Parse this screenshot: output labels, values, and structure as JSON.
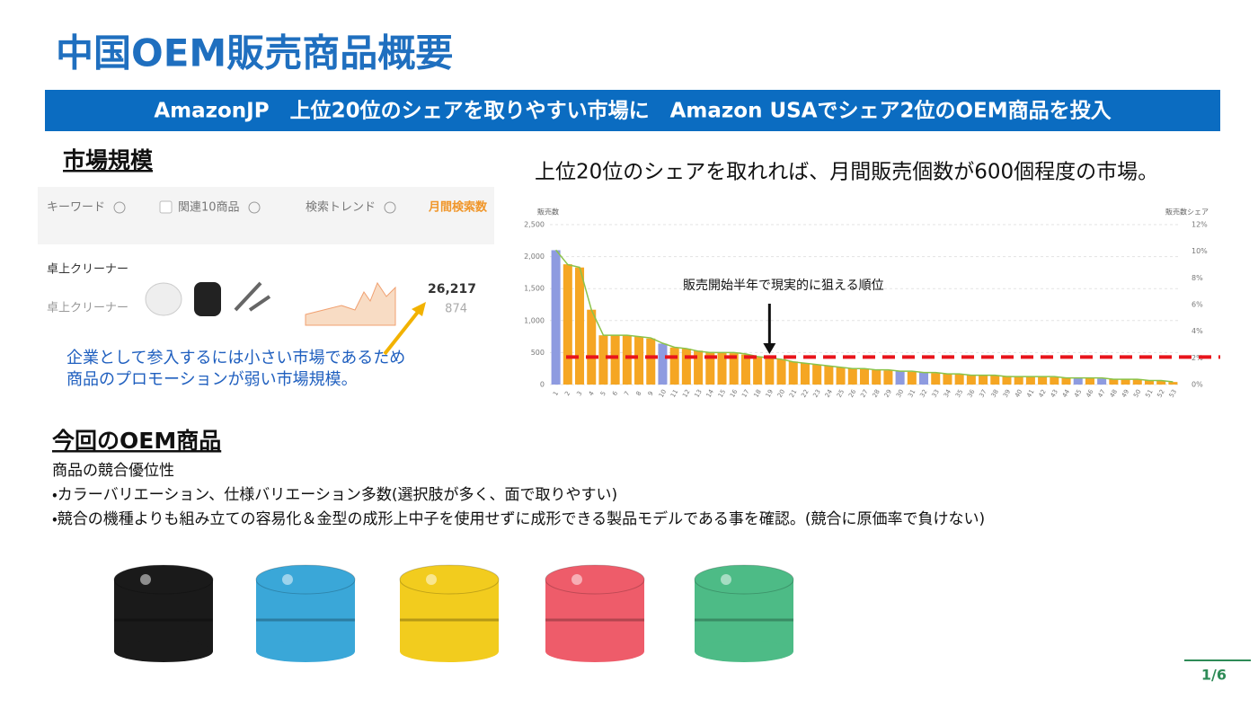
{
  "title": "中国OEM販売商品概要",
  "banner": "AmazonJP　上位20位のシェアを取りやすい市場に　Amazon USAでシェア2位のOEM商品を投入",
  "market": {
    "heading": "市場規模",
    "table": {
      "headers": [
        "キーワード",
        "関連10商品",
        "検索トレンド",
        "月間検索数"
      ],
      "row": {
        "keyword": "卓上クリーナー",
        "keyword_sub": "卓上クリーナー",
        "searches": "26,217",
        "sub_value": "874"
      }
    },
    "note": [
      "企業として参入するには小さい市場であるため",
      "商品のプロモーションが弱い市場規模。"
    ]
  },
  "chart_heading": "上位20位のシェアを取れれば、月間販売個数が600個程度の市場。",
  "chart_data": {
    "type": "bar",
    "y_label": "販売数",
    "y2_label": "販売数シェア",
    "annotation": "販売開始半年で現実的に狙える順位",
    "categories": [
      "1",
      "2",
      "3",
      "4",
      "5",
      "6",
      "7",
      "8",
      "9",
      "10",
      "11",
      "12",
      "13",
      "14",
      "15",
      "16",
      "17",
      "18",
      "19",
      "20",
      "21",
      "22",
      "23",
      "24",
      "25",
      "26",
      "27",
      "28",
      "29",
      "30",
      "31",
      "32",
      "33",
      "34",
      "35",
      "36",
      "37",
      "38",
      "39",
      "40",
      "41",
      "42",
      "43",
      "44",
      "45",
      "46",
      "47",
      "48",
      "49",
      "50",
      "51",
      "52",
      "53"
    ],
    "values": [
      2100,
      1880,
      1830,
      1170,
      770,
      770,
      770,
      750,
      720,
      640,
      580,
      560,
      530,
      510,
      500,
      490,
      470,
      440,
      420,
      400,
      360,
      330,
      310,
      290,
      270,
      250,
      240,
      230,
      220,
      210,
      200,
      190,
      180,
      170,
      160,
      150,
      145,
      140,
      135,
      130,
      125,
      120,
      115,
      110,
      105,
      100,
      95,
      90,
      85,
      80,
      70,
      60,
      40
    ],
    "colors": [
      "#8e9be0",
      "#f5a623",
      "#f5a623",
      "#f5a623",
      "#f5a623",
      "#f5a623",
      "#f5a623",
      "#f5a623",
      "#f5a623",
      "#8e9be0",
      "#f5a623",
      "#f5a623",
      "#f5a623",
      "#f5a623",
      "#f5a623",
      "#f5a623",
      "#f5a623",
      "#f5a623",
      "#f5a623",
      "#f5a623",
      "#f5a623",
      "#f5a623",
      "#f5a623",
      "#f5a623",
      "#f5a623",
      "#f5a623",
      "#f5a623",
      "#f5a623",
      "#f5a623",
      "#8e9be0",
      "#f5a623",
      "#8e9be0",
      "#f5a623",
      "#f5a623",
      "#f5a623",
      "#f5a623",
      "#f5a623",
      "#f5a623",
      "#f5a623",
      "#f5a623",
      "#f5a623",
      "#f5a623",
      "#f5a623",
      "#f5a623",
      "#8e9be0",
      "#f5a623",
      "#8e9be0",
      "#f5a623",
      "#f5a623",
      "#f5a623",
      "#f5a623",
      "#f5a623",
      "#f5a623"
    ],
    "line": {
      "axis": "y2",
      "color": "#8bc34a",
      "values": [
        10.1,
        9.0,
        8.8,
        5.6,
        3.7,
        3.7,
        3.7,
        3.6,
        3.5,
        3.1,
        2.8,
        2.7,
        2.5,
        2.4,
        2.4,
        2.4,
        2.3,
        2.1,
        2.0,
        1.9,
        1.7,
        1.6,
        1.5,
        1.4,
        1.3,
        1.2,
        1.2,
        1.1,
        1.1,
        1.0,
        1.0,
        0.9,
        0.9,
        0.8,
        0.8,
        0.7,
        0.7,
        0.7,
        0.6,
        0.6,
        0.6,
        0.6,
        0.6,
        0.5,
        0.5,
        0.5,
        0.5,
        0.4,
        0.4,
        0.4,
        0.3,
        0.3,
        0.2
      ]
    },
    "reference_line": 430,
    "reference_color": "#e8141b",
    "annotation_rank": 19,
    "ylim": [
      0,
      2500
    ],
    "yticks": [
      0,
      500,
      {
        "value": 1000,
        "label": "1,000"
      },
      {
        "value": 1500,
        "label": "1,500"
      },
      {
        "value": 2000,
        "label": "2,000"
      },
      {
        "value": 2500,
        "label": "2,500"
      }
    ],
    "y2lim": [
      0,
      12
    ],
    "y2ticks": [
      {
        "value": 0,
        "label": "0%"
      },
      {
        "value": 2,
        "label": "2%"
      },
      {
        "value": 4,
        "label": "4%"
      },
      {
        "value": 6,
        "label": "6%"
      },
      {
        "value": 8,
        "label": "8%"
      },
      {
        "value": 10,
        "label": "10%"
      },
      {
        "value": 12,
        "label": "12%"
      }
    ],
    "grid": true
  },
  "product": {
    "heading": "今回のOEM商品",
    "lines": [
      "商品の競合優位性",
      "・カラーバリエーション、仕様バリエーション多数(選択肢が多く、面で取りやすい)",
      "・競合の機種よりも組み立ての容易化＆金型の成形上中子を使用せずに成形できる製品モデルである事を確認。(競合に原価率で負けない)"
    ]
  },
  "page_number": "1/6"
}
